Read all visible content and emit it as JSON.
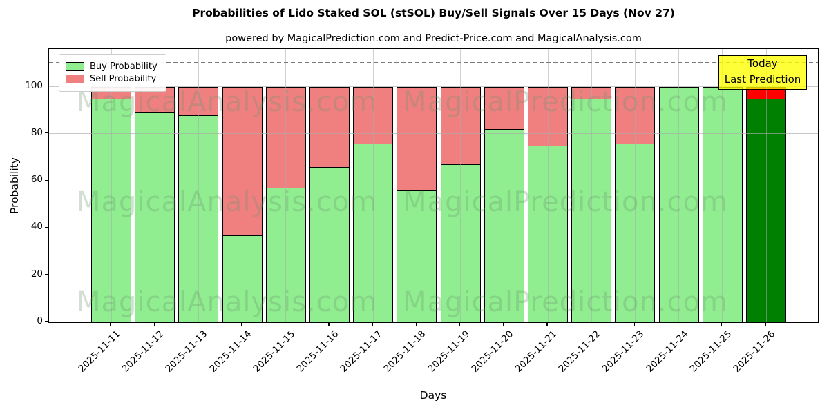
{
  "title": "Probabilities of Lido Staked SOL (stSOL) Buy/Sell Signals Over 15 Days (Nov 27)",
  "subtitle": "powered by MagicalPrediction.com and Predict-Price.com and MagicalAnalysis.com",
  "annotation": {
    "line1": "Today",
    "line2": "Last Prediction"
  },
  "watermarks": {
    "left": "MagicalAnalysis.com",
    "right": "MagicalPrediction.com"
  },
  "colors": {
    "buy": "#90EE90",
    "sell": "#F08080",
    "last_buy": "#008000",
    "last_sell": "#FF0000",
    "annotation_bg": "#FFFF00",
    "grid": "#AAAAAA",
    "bar_edge": "#000000"
  },
  "chart_data": {
    "type": "bar",
    "stacked": true,
    "title": "Probabilities of Lido Staked SOL (stSOL) Buy/Sell Signals Over 15 Days (Nov 27)",
    "xlabel": "Days",
    "ylabel": "Probability",
    "categories": [
      "2025-11-11",
      "2025-11-12",
      "2025-11-13",
      "2025-11-14",
      "2025-11-15",
      "2025-11-16",
      "2025-11-17",
      "2025-11-18",
      "2025-11-19",
      "2025-11-20",
      "2025-11-21",
      "2025-11-22",
      "2025-11-23",
      "2025-11-24",
      "2025-11-25",
      "2025-11-26"
    ],
    "series": [
      {
        "name": "Buy Probability",
        "color": "#90EE90",
        "values": [
          95,
          89,
          88,
          37,
          57,
          66,
          76,
          56,
          67,
          82,
          75,
          95,
          76,
          100,
          100,
          95
        ]
      },
      {
        "name": "Sell Probability",
        "color": "#F08080",
        "values": [
          5,
          11,
          12,
          63,
          43,
          34,
          24,
          44,
          33,
          18,
          25,
          5,
          24,
          0,
          0,
          5
        ]
      }
    ],
    "last_bar_colors": {
      "buy": "#008000",
      "sell": "#FF0000"
    },
    "yticks": [
      0,
      20,
      40,
      60,
      80,
      100
    ],
    "ylim": [
      0,
      116
    ],
    "dashed_line_y": 110.5,
    "grid": true,
    "legend_position": "upper left"
  }
}
